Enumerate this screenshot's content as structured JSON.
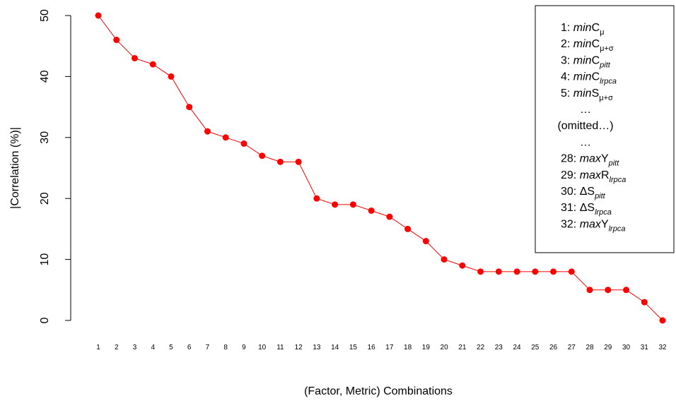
{
  "chart_data": {
    "type": "line",
    "x_label": "(Factor, Metric) Combinations",
    "y_label": "|Correlation (%)|",
    "categories": [
      "1",
      "2",
      "3",
      "4",
      "5",
      "6",
      "7",
      "8",
      "9",
      "10",
      "11",
      "12",
      "13",
      "14",
      "15",
      "16",
      "17",
      "18",
      "19",
      "20",
      "21",
      "22",
      "23",
      "24",
      "25",
      "26",
      "27",
      "28",
      "29",
      "30",
      "31",
      "32"
    ],
    "values": [
      50,
      46,
      43,
      42,
      40,
      35,
      31,
      30,
      29,
      27,
      26,
      26,
      20,
      19,
      19,
      18,
      17,
      15,
      13,
      10,
      9,
      8,
      8,
      8,
      8,
      8,
      8,
      5,
      5,
      5,
      3,
      0
    ],
    "color": "#ff0000",
    "ylim": [
      0,
      50
    ],
    "yticks": [
      0,
      10,
      20,
      30,
      40,
      50
    ],
    "legend": [
      {
        "label": "1:",
        "italic": "min",
        "main": "C",
        "sub": "μ",
        "sub_italic": false
      },
      {
        "label": "2:",
        "italic": "min",
        "main": "C",
        "sub": "μ+σ",
        "sub_italic": false
      },
      {
        "label": "3:",
        "italic": "min",
        "main": "C",
        "sub": "pitt",
        "sub_italic": true
      },
      {
        "label": "4:",
        "italic": "min",
        "main": "C",
        "sub": "lrpca",
        "sub_italic": true
      },
      {
        "label": "5:",
        "italic": "min",
        "main": "S",
        "sub": "μ+σ",
        "sub_italic": false
      },
      {
        "text": "…"
      },
      {
        "text": "(omitted…)"
      },
      {
        "text": "…"
      },
      {
        "label": "28:",
        "italic": "max",
        "main": "Y",
        "sub": "pitt",
        "sub_italic": true
      },
      {
        "label": "29:",
        "italic": "max",
        "main": "R",
        "sub": "lrpca",
        "sub_italic": true
      },
      {
        "label": "30:",
        "main": "ΔS",
        "sub": "pitt",
        "sub_italic": true
      },
      {
        "label": "31:",
        "main": "ΔS",
        "sub": "lrpca",
        "sub_italic": true
      },
      {
        "label": "32:",
        "italic": "max",
        "main": "Y",
        "sub": "lrpca",
        "sub_italic": true
      }
    ]
  }
}
